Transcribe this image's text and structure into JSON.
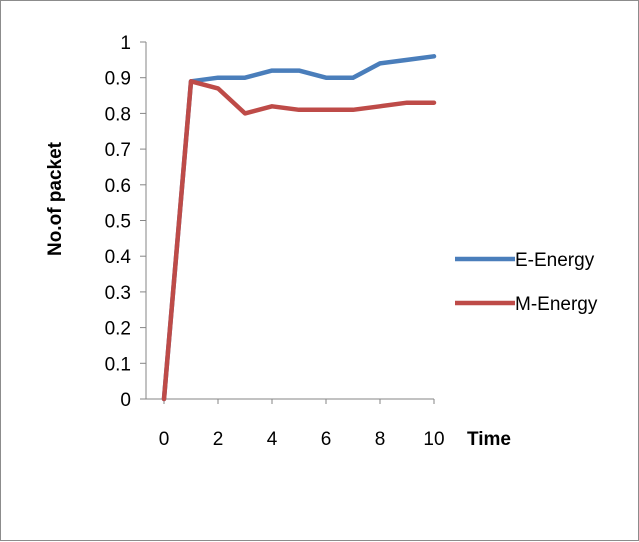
{
  "chart_data": {
    "type": "line",
    "title": "",
    "xlabel": "Time",
    "ylabel": "No.of packet",
    "xlim": [
      0,
      10
    ],
    "ylim": [
      0,
      1
    ],
    "x_ticks": [
      0,
      2,
      4,
      6,
      8,
      10
    ],
    "x_tick_labels": [
      "0",
      "2",
      "4",
      "6",
      "8",
      "10"
    ],
    "y_ticks": [
      0,
      0.1,
      0.2,
      0.3,
      0.4,
      0.5,
      0.6,
      0.7,
      0.8,
      0.9,
      1
    ],
    "y_tick_labels": [
      "0",
      "0.1",
      "0.2",
      "0.3",
      "0.4",
      "0.5",
      "0.6",
      "0.7",
      "0.8",
      "0.9",
      "1"
    ],
    "grid": false,
    "legend_position": "right",
    "x": [
      0,
      1,
      2,
      3,
      4,
      5,
      6,
      7,
      8,
      9,
      10
    ],
    "series": [
      {
        "name": "E-Energy",
        "color": "#4a7ebb",
        "values": [
          0,
          0.89,
          0.9,
          0.9,
          0.92,
          0.92,
          0.9,
          0.9,
          0.94,
          0.95,
          0.96
        ]
      },
      {
        "name": "M-Energy",
        "color": "#be4b48",
        "values": [
          0,
          0.89,
          0.87,
          0.8,
          0.82,
          0.81,
          0.81,
          0.81,
          0.82,
          0.83,
          0.83
        ]
      }
    ]
  }
}
